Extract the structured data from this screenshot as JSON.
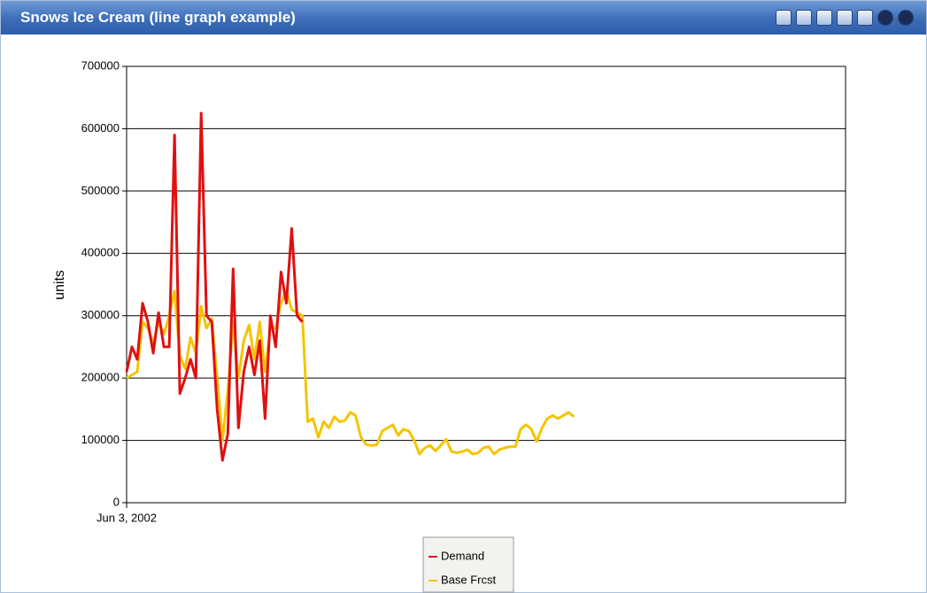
{
  "window_title": "Snows Ice Cream (line graph example)",
  "chart_data": {
    "type": "line",
    "ylabel": "units",
    "xlim": [
      0,
      135
    ],
    "xticks": [
      {
        "value": 0,
        "label": "Jun 3, 2002"
      }
    ],
    "ylim": [
      0,
      700000
    ],
    "yticks": [
      0,
      100000,
      200000,
      300000,
      400000,
      500000,
      600000,
      700000
    ],
    "grid": true,
    "legend": "bottom",
    "series": [
      {
        "name": "Demand",
        "color": "#e01010",
        "values": [
          210000,
          250000,
          230000,
          320000,
          290000,
          240000,
          305000,
          250000,
          250000,
          590000,
          175000,
          200000,
          230000,
          200000,
          625000,
          300000,
          290000,
          150000,
          68000,
          110000,
          375000,
          120000,
          210000,
          250000,
          205000,
          260000,
          135000,
          300000,
          250000,
          370000,
          320000,
          440000,
          300000,
          290000
        ]
      },
      {
        "name": "Base Frcst",
        "color": "#f5c400",
        "values": [
          200000,
          205000,
          210000,
          290000,
          280000,
          255000,
          290000,
          270000,
          300000,
          340000,
          235000,
          215000,
          265000,
          240000,
          315000,
          280000,
          295000,
          200000,
          100000,
          180000,
          290000,
          200000,
          260000,
          285000,
          230000,
          290000,
          210000,
          280000,
          280000,
          320000,
          340000,
          310000,
          305000,
          300000,
          130000,
          135000,
          105000,
          130000,
          120000,
          138000,
          130000,
          132000,
          145000,
          140000,
          105000,
          93000,
          92000,
          93000,
          115000,
          120000,
          125000,
          108000,
          118000,
          115000,
          100000,
          78000,
          88000,
          92000,
          83000,
          92000,
          102000,
          82000,
          80000,
          82000,
          85000,
          78000,
          80000,
          88000,
          90000,
          78000,
          85000,
          88000,
          90000,
          90000,
          118000,
          125000,
          118000,
          98000,
          120000,
          135000,
          140000,
          135000,
          140000,
          145000,
          138000
        ]
      }
    ]
  }
}
